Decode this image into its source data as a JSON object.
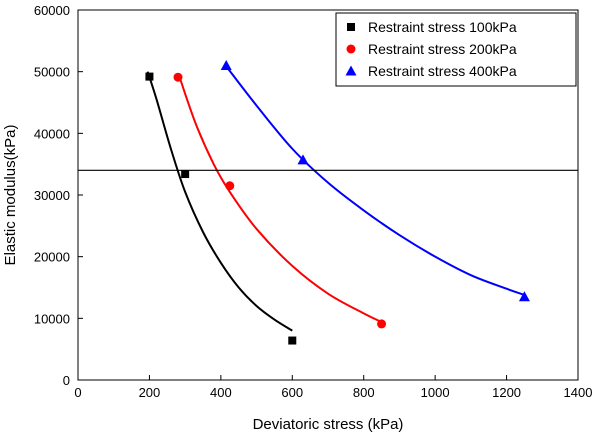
{
  "chart_data": {
    "type": "scatter",
    "title": "",
    "xlabel": "Deviatoric stress (kPa)",
    "ylabel": "Elastic modulus(kPa)",
    "xlim": [
      0,
      1400
    ],
    "ylim": [
      0,
      60000
    ],
    "xticks": [
      0,
      200,
      400,
      600,
      800,
      1000,
      1200,
      1400
    ],
    "yticks": [
      0,
      10000,
      20000,
      30000,
      40000,
      50000,
      60000
    ],
    "grid": false,
    "legend_position": "top-right",
    "reference_line_y": 34000,
    "series": [
      {
        "name": "Restraint stress 100kPa",
        "marker": "square",
        "color": "#000000",
        "points": [
          [
            200,
            49200
          ],
          [
            300,
            33400
          ],
          [
            600,
            6400
          ]
        ],
        "fit_curve": [
          [
            195,
            50000
          ],
          [
            220,
            45500
          ],
          [
            260,
            37500
          ],
          [
            300,
            30500
          ],
          [
            350,
            24000
          ],
          [
            400,
            19000
          ],
          [
            450,
            15000
          ],
          [
            500,
            12000
          ],
          [
            550,
            9800
          ],
          [
            600,
            8000
          ]
        ]
      },
      {
        "name": "Restraint stress 200kPa",
        "marker": "circle",
        "color": "#ff0000",
        "points": [
          [
            280,
            49100
          ],
          [
            425,
            31500
          ],
          [
            850,
            9100
          ]
        ],
        "fit_curve": [
          [
            285,
            49000
          ],
          [
            330,
            41500
          ],
          [
            380,
            35000
          ],
          [
            425,
            30500
          ],
          [
            500,
            24500
          ],
          [
            600,
            18500
          ],
          [
            700,
            14000
          ],
          [
            800,
            10800
          ],
          [
            850,
            9400
          ]
        ]
      },
      {
        "name": "Restraint stress 400kPa",
        "marker": "triangle",
        "color": "#0000ff",
        "points": [
          [
            415,
            51000
          ],
          [
            630,
            35700
          ],
          [
            1250,
            13500
          ]
        ],
        "fit_curve": [
          [
            420,
            50500
          ],
          [
            500,
            44500
          ],
          [
            600,
            37500
          ],
          [
            700,
            32000
          ],
          [
            800,
            27500
          ],
          [
            900,
            23500
          ],
          [
            1000,
            20000
          ],
          [
            1100,
            17000
          ],
          [
            1200,
            14800
          ],
          [
            1250,
            13800
          ]
        ]
      }
    ]
  }
}
